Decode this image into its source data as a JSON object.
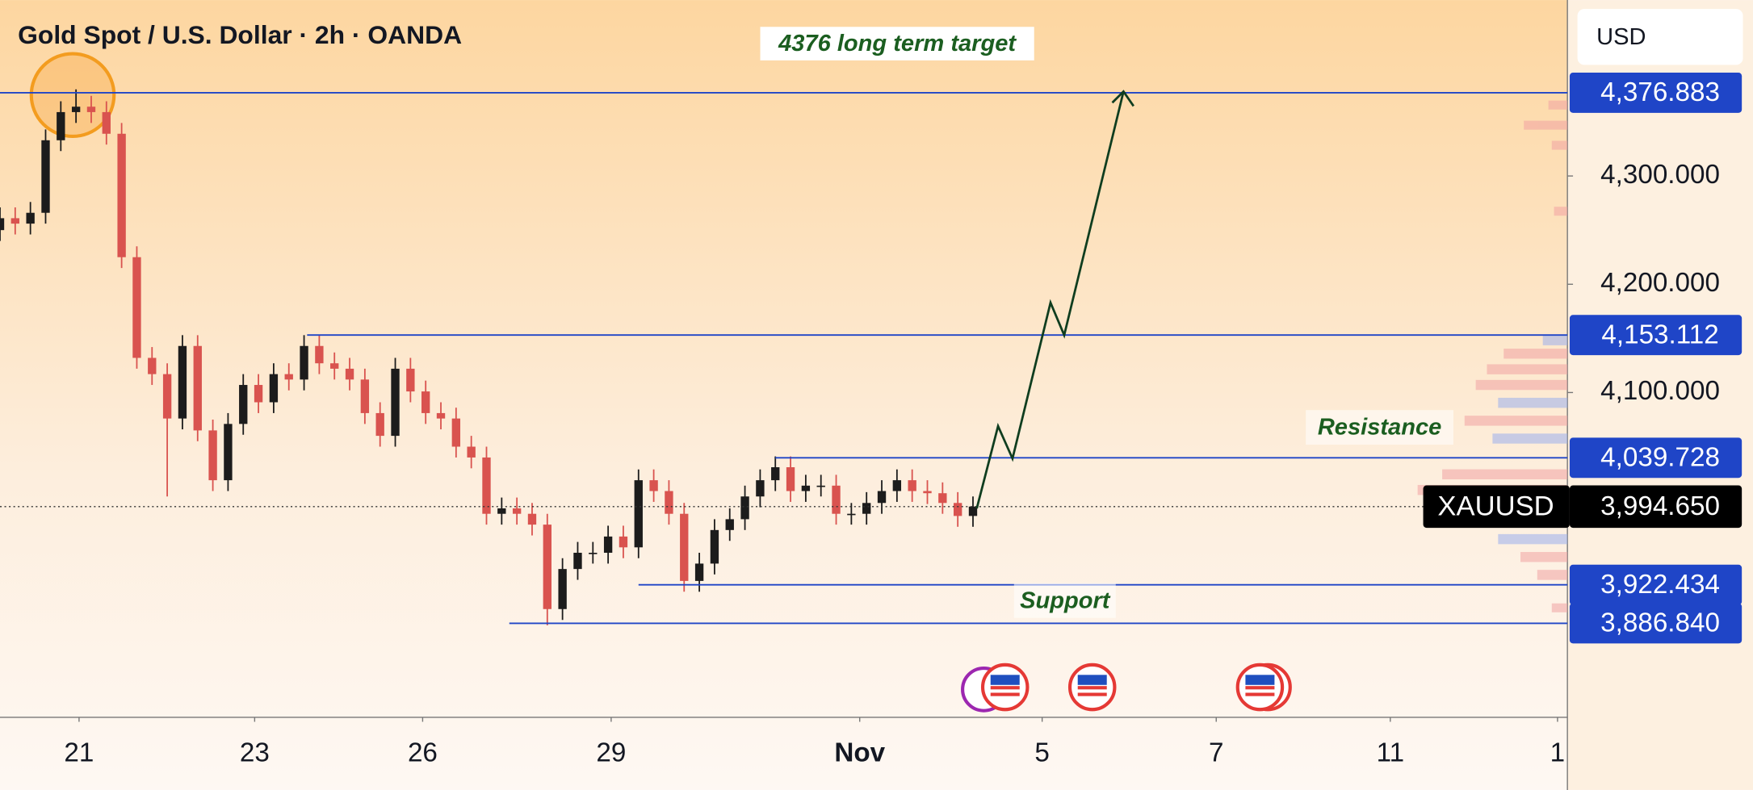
{
  "chart_data": {
    "type": "candlestick",
    "title": "Gold Spot / U.S. Dollar · 2h · OANDA",
    "currency": "USD",
    "symbol": "XAUUSD",
    "up_color": "#1c1c1c",
    "down_color": "#d9534f",
    "level_color": "#1f45c7",
    "xlim": [
      0,
      206.2
    ],
    "ylim": [
      3800,
      4462.5
    ],
    "xticks": [
      {
        "value": 10.4,
        "label": "21"
      },
      {
        "value": 33.5,
        "label": "23"
      },
      {
        "value": 55.6,
        "label": "26"
      },
      {
        "value": 80.4,
        "label": "29"
      },
      {
        "value": 113.1,
        "label": "Nov"
      },
      {
        "value": 137.1,
        "label": "5"
      },
      {
        "value": 160,
        "label": "7"
      },
      {
        "value": 182.9,
        "label": "11"
      },
      {
        "value": 204.9,
        "label": "1"
      }
    ],
    "yticks": [
      {
        "value": 4300,
        "label": "4,300.000"
      },
      {
        "value": 4200,
        "label": "4,200.000"
      },
      {
        "value": 4100,
        "label": "4,100.000"
      }
    ],
    "x": [
      0,
      2,
      4,
      6,
      8,
      10,
      12,
      14,
      16,
      18,
      20,
      22,
      24,
      26,
      28,
      30,
      32,
      34,
      36,
      38,
      40,
      42,
      44,
      46,
      48,
      50,
      52,
      54,
      56,
      58,
      60,
      62,
      64,
      66,
      68,
      70,
      72,
      74,
      76,
      78,
      80,
      82,
      84,
      86,
      88,
      90,
      92,
      94,
      96,
      98,
      100,
      102,
      104,
      106,
      108,
      110,
      112,
      114,
      116,
      118,
      120,
      122,
      124,
      126,
      128
    ],
    "open": [
      4250,
      4261,
      4256,
      4266,
      4333,
      4359,
      4364,
      4359,
      4339,
      4225,
      4132,
      4117,
      4076,
      4143,
      4065,
      4019,
      4071,
      4107,
      4091,
      4117,
      4112,
      4143,
      4127,
      4122,
      4112,
      4081,
      4060,
      4122,
      4101,
      4081,
      4076,
      4050,
      4040,
      3988,
      3993,
      3988,
      3978,
      3900,
      3937,
      3952,
      3952,
      3967,
      3957,
      4019,
      4009,
      3988,
      3926,
      3942,
      3973,
      3983,
      4004,
      4019,
      4031,
      4009,
      4014,
      4014,
      3988,
      3988,
      3998,
      4009,
      4019,
      4009,
      4007,
      3998,
      3986
    ],
    "high": [
      4271,
      4271,
      4276,
      4343,
      4369,
      4380,
      4374,
      4369,
      4349,
      4235,
      4142,
      4127,
      4153,
      4153,
      4075,
      4081,
      4117,
      4117,
      4127,
      4127,
      4153,
      4153,
      4137,
      4132,
      4122,
      4091,
      4132,
      4132,
      4111,
      4091,
      4086,
      4060,
      4050,
      4003,
      4003,
      3998,
      3988,
      3947,
      3962,
      3962,
      3977,
      3977,
      4029,
      4029,
      4019,
      3998,
      3952,
      3983,
      3993,
      4014,
      4029,
      4041,
      4041,
      4024,
      4024,
      4024,
      3998,
      4008,
      4019,
      4029,
      4029,
      4019,
      4017,
      4008,
      4004
    ],
    "low": [
      4240,
      4246,
      4246,
      4256,
      4323,
      4349,
      4349,
      4329,
      4215,
      4122,
      4107,
      4004,
      4066,
      4055,
      4009,
      4009,
      4061,
      4081,
      4081,
      4102,
      4102,
      4117,
      4112,
      4102,
      4071,
      4050,
      4050,
      4091,
      4071,
      4066,
      4040,
      4030,
      3978,
      3978,
      3978,
      3968,
      3885,
      3890,
      3927,
      3942,
      3942,
      3947,
      3947,
      3999,
      3978,
      3916,
      3916,
      3932,
      3963,
      3973,
      3994,
      4009,
      3999,
      3999,
      4004,
      3978,
      3978,
      3978,
      3988,
      3999,
      3999,
      3997,
      3988,
      3976,
      3976
    ],
    "close": [
      4261,
      4256,
      4266,
      4333,
      4359,
      4364,
      4359,
      4339,
      4225,
      4132,
      4117,
      4076,
      4143,
      4065,
      4019,
      4071,
      4107,
      4091,
      4117,
      4112,
      4143,
      4127,
      4122,
      4112,
      4081,
      4060,
      4122,
      4101,
      4081,
      4076,
      4050,
      4040,
      3988,
      3993,
      3988,
      3978,
      3900,
      3937,
      3952,
      3952,
      3967,
      3957,
      4019,
      4009,
      3988,
      3926,
      3942,
      3973,
      3983,
      4004,
      4019,
      4031,
      4009,
      4014,
      4014,
      3988,
      3988,
      3998,
      4009,
      4019,
      4009,
      4007,
      3998,
      3986,
      3994.65
    ],
    "levels": [
      {
        "value": 4376.883,
        "label": "4,376.883",
        "start": 0
      },
      {
        "value": 4153.112,
        "label": "4,153.112",
        "start": 40.4
      },
      {
        "value": 4039.728,
        "label": "4,039.728",
        "start": 102
      },
      {
        "value": 3922.434,
        "label": "3,922.434",
        "start": 84
      },
      {
        "value": 3886.84,
        "label": "3,886.840",
        "start": 67
      }
    ],
    "last_price": {
      "value": 3994.65,
      "label": "3,994.650"
    },
    "annotations": [
      "4376 long term target",
      "Resistance",
      "Support"
    ],
    "projection": {
      "x": [
        128.5,
        131.3,
        133.2,
        138.2,
        140,
        147.8
      ],
      "y": [
        3993,
        4069,
        4039,
        4183,
        4153,
        4378
      ]
    }
  }
}
